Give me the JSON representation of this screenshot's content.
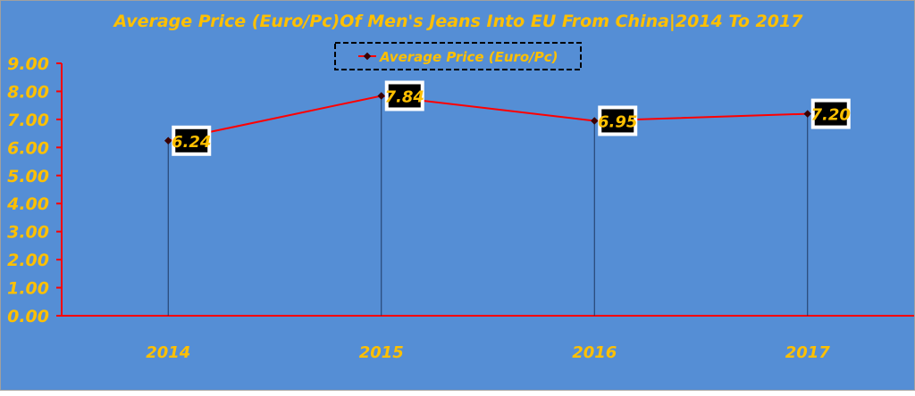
{
  "chart_data": {
    "type": "line",
    "title": "Average Price (Euro/Pc)Of Men's Jeans Into EU From China|2014 To 2017",
    "categories": [
      "2014",
      "2015",
      "2016",
      "2017"
    ],
    "series": [
      {
        "name": "Average Price (Euro/Pc)",
        "values": [
          6.24,
          7.84,
          6.95,
          7.2
        ],
        "labels": [
          "6.24",
          "7.84",
          "6.95",
          "7.20"
        ]
      }
    ],
    "ylim": [
      0,
      9
    ],
    "yticks": [
      "0.00",
      "1.00",
      "2.00",
      "3.00",
      "4.00",
      "5.00",
      "6.00",
      "7.00",
      "8.00",
      "9.00"
    ],
    "xlabel": "",
    "ylabel": "",
    "grid": false,
    "legend": "top-center",
    "colors": {
      "background": "#558ed5",
      "text": "#ffc000",
      "line": "#ff0000",
      "axis": "#ff0000",
      "marker": "#3a0000",
      "drop_line": "#1f3864",
      "label_bg": "#000000"
    }
  }
}
